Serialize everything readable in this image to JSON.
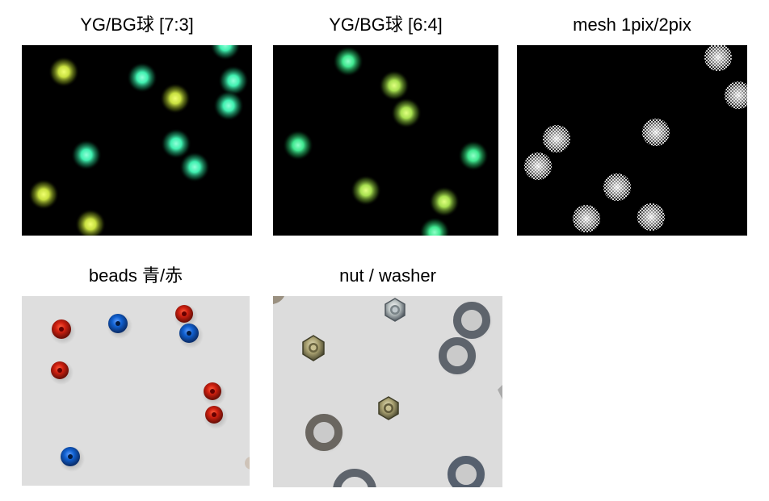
{
  "panels": [
    {
      "caption": "YG/BG球 [7:3]"
    },
    {
      "caption": "YG/BG球 [6:4]"
    },
    {
      "caption": "mesh 1pix/2pix"
    },
    {
      "caption": "beads 青/赤"
    },
    {
      "caption": "nut / washer"
    }
  ],
  "colors": {
    "yellow_green_ball": "#c8e040",
    "blue_green_ball": "#40f0b0",
    "mesh_ball": "#ffffff",
    "bead_red": "#d02010",
    "bead_blue": "#1060d0",
    "washer": "#606670",
    "nut": "#b0a870",
    "photo_background": "#dcdcdc",
    "dark_background": "#000000"
  }
}
